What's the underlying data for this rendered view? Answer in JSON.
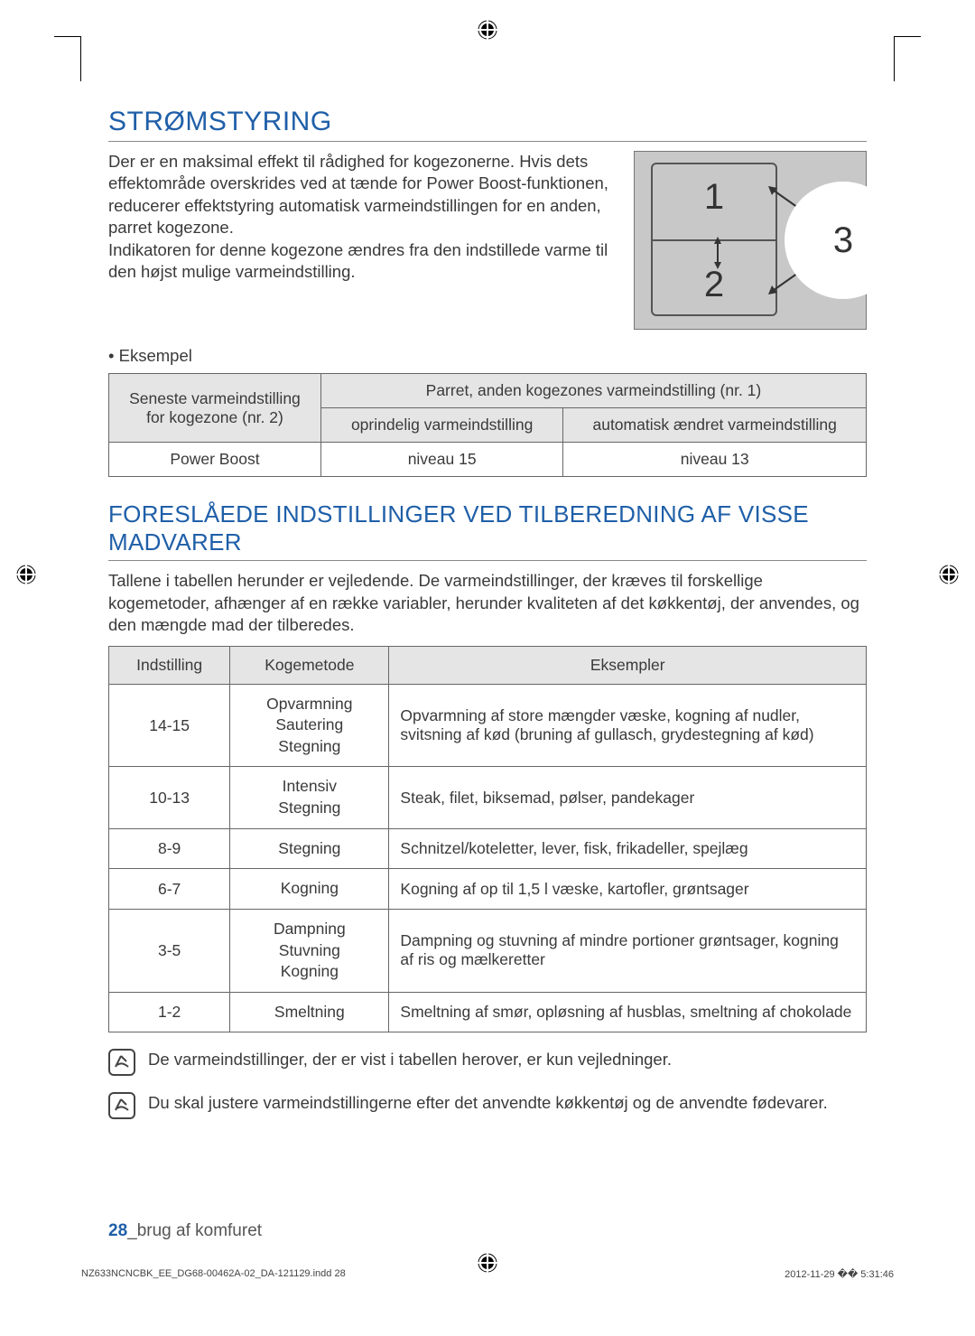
{
  "title1": "STRØMSTYRING",
  "intro": "Der er en maksimal effekt til rådighed for kogezonerne. Hvis dets effektområde overskrides ved at tænde for Power Boost-funktionen, reducerer effektstyring automatisk varmeindstillingen for en anden, parret kogezone.\nIndikatoren for denne kogezone ændres fra den indstillede varme til den højst mulige varmeindstilling.",
  "diagram": {
    "z1": "1",
    "z2": "2",
    "z3": "3"
  },
  "bullet": "Eksempel",
  "table1": {
    "colA": "Seneste varmeindstilling for kogezone (nr. 2)",
    "colB_span": "Parret, anden kogezones varmeindstilling (nr. 1)",
    "colB1": "oprindelig varmeindstilling",
    "colB2": "automatisk ændret varmeindstilling",
    "r1a": "Power Boost",
    "r1b": "niveau 15",
    "r1c": "niveau 13"
  },
  "title2": "FORESLÅEDE INDSTILLINGER VED TILBEREDNING AF VISSE MADVARER",
  "para2": "Tallene i tabellen herunder er vejledende. De varmeindstillinger, der kræves til forskellige kogemetoder, afhænger af en række variabler, herunder kvaliteten af det køkkentøj, der anvendes, og den mængde mad der tilberedes.",
  "table2": {
    "h1": "Indstilling",
    "h2": "Kogemetode",
    "h3": "Eksempler",
    "rows": [
      {
        "a": "14-15",
        "b": "Opvarmning\nSautering\nStegning",
        "c": "Opvarmning af store mængder væske, kogning af nudler, svitsning af kød (bruning af gullasch, grydestegning af kød)"
      },
      {
        "a": "10-13",
        "b": "Intensiv\nStegning",
        "c": "Steak, filet, biksemad, pølser, pandekager"
      },
      {
        "a": "8-9",
        "b": "Stegning",
        "c": "Schnitzel/koteletter, lever, fisk, frikadeller, spejlæg"
      },
      {
        "a": "6-7",
        "b": "Kogning",
        "c": "Kogning af op til 1,5 l væske, kartofler, grøntsager"
      },
      {
        "a": "3-5",
        "b": "Dampning\nStuvning\nKogning",
        "c": "Dampning og stuvning af mindre portioner grøntsager, kogning af ris og mælkeretter"
      },
      {
        "a": "1-2",
        "b": "Smeltning",
        "c": "Smeltning af smør, opløsning af husblas, smeltning af chokolade"
      }
    ]
  },
  "note1": "De varmeindstillinger, der er vist i tabellen herover, er kun vejledninger.",
  "note2": "Du skal justere varmeindstillingerne efter det anvendte køkkentøj og de anvendte fødevarer.",
  "footer_num": "28",
  "footer_label": "_brug af komfuret",
  "print_file": "NZ633NCNCBK_EE_DG68-00462A-02_DA-121129.indd   28",
  "print_time": "2012-11-29   �� 5:31:46"
}
